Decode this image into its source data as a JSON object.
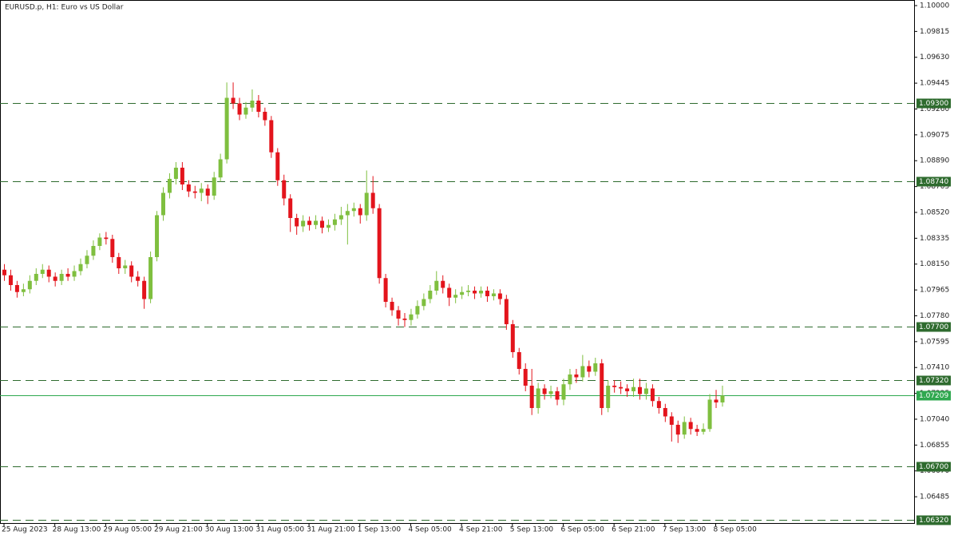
{
  "chart_data": {
    "type": "candlestick",
    "title": "EURUSD.p, H1:  Euro vs US Dollar",
    "categories": [
      "25 Aug 2023",
      null,
      null,
      null,
      null,
      null,
      null,
      null,
      "28 Aug 13:00",
      null,
      null,
      null,
      null,
      null,
      null,
      null,
      "29 Aug 05:00",
      null,
      null,
      null,
      null,
      null,
      null,
      null,
      "29 Aug 21:00",
      null,
      null,
      null,
      null,
      null,
      null,
      null,
      "30 Aug 13:00",
      null,
      null,
      null,
      null,
      null,
      null,
      null,
      "31 Aug 05:00",
      null,
      null,
      null,
      null,
      null,
      null,
      null,
      "31 Aug 21:00",
      null,
      null,
      null,
      null,
      null,
      null,
      null,
      "1 Sep 13:00",
      null,
      null,
      null,
      null,
      null,
      null,
      null,
      "4 Sep 05:00",
      null,
      null,
      null,
      null,
      null,
      null,
      null,
      "4 Sep 21:00",
      null,
      null,
      null,
      null,
      null,
      null,
      null,
      "5 Sep 13:00",
      null,
      null,
      null,
      null,
      null,
      null,
      null,
      "6 Sep 05:00",
      null,
      null,
      null,
      null,
      null,
      null,
      null,
      "6 Sep 21:00",
      null,
      null,
      null,
      null,
      null,
      null,
      null,
      "7 Sep 13:00",
      null,
      null,
      null,
      null,
      null,
      null,
      null,
      "8 Sep 05:00",
      null
    ],
    "open": [
      1.0811,
      1.0807,
      1.08,
      1.0795,
      1.0797,
      1.0803,
      1.0808,
      1.0811,
      1.0806,
      1.0803,
      1.0808,
      1.0806,
      1.081,
      1.0815,
      1.0821,
      1.0828,
      1.0834,
      1.0833,
      1.082,
      1.0812,
      1.0814,
      1.0806,
      1.0803,
      1.079,
      1.082,
      1.085,
      1.0866,
      1.0876,
      1.0884,
      1.0872,
      1.0867,
      1.0866,
      1.0869,
      1.0864,
      1.0877,
      1.089,
      1.0934,
      1.093,
      1.0922,
      1.0927,
      1.0932,
      1.0924,
      1.0918,
      1.0895,
      1.0875,
      1.0862,
      1.0848,
      1.0842,
      1.0846,
      1.0843,
      1.0846,
      1.0841,
      1.0843,
      1.0847,
      1.085,
      1.0853,
      1.0855,
      1.085,
      1.0866,
      1.0855,
      1.0805,
      1.0788,
      1.0782,
      1.0776,
      1.0775,
      1.0779,
      1.0785,
      1.079,
      1.0796,
      1.0803,
      1.0798,
      1.0791,
      1.0793,
      1.0795,
      1.0796,
      1.0794,
      1.0796,
      1.0792,
      1.0794,
      1.079,
      1.0772,
      1.0752,
      1.074,
      1.0728,
      1.0712,
      1.0726,
      1.0722,
      1.0724,
      1.0718,
      1.0729,
      1.0736,
      1.0734,
      1.0742,
      1.0738,
      1.0744,
      1.0712,
      1.0728,
      1.0727,
      1.0726,
      1.0724,
      1.0727,
      1.0722,
      1.0726,
      1.0717,
      1.0712,
      1.0706,
      1.07,
      1.0693,
      1.0702,
      1.0697,
      1.0695,
      1.0697,
      1.0718,
      1.0716
    ],
    "high": [
      1.0815,
      1.0811,
      1.0803,
      1.0801,
      1.0807,
      1.0812,
      1.0815,
      1.0814,
      1.0809,
      1.0811,
      1.0812,
      1.0814,
      1.0819,
      1.0825,
      1.0832,
      1.0837,
      1.0838,
      1.0836,
      1.0823,
      1.0818,
      1.0817,
      1.081,
      1.0806,
      1.0824,
      1.0853,
      1.087,
      1.088,
      1.0888,
      1.0888,
      1.0875,
      1.0871,
      1.0873,
      1.0872,
      1.0881,
      1.0894,
      1.0945,
      1.0945,
      1.0934,
      1.0931,
      1.094,
      1.0936,
      1.0927,
      1.0921,
      1.0898,
      1.0879,
      1.0865,
      1.0851,
      1.085,
      1.0849,
      1.085,
      1.0849,
      1.0847,
      1.0851,
      1.0856,
      1.0858,
      1.0859,
      1.0858,
      1.0882,
      1.0878,
      1.0858,
      1.0808,
      1.0791,
      1.0785,
      1.078,
      1.0783,
      1.0789,
      1.0794,
      1.08,
      1.081,
      1.0807,
      1.0801,
      1.0797,
      1.0799,
      1.08,
      1.0799,
      1.0799,
      1.0799,
      1.0797,
      1.0797,
      1.0793,
      1.0775,
      1.0755,
      1.0744,
      1.074,
      1.073,
      1.0729,
      1.0728,
      1.0727,
      1.0733,
      1.074,
      1.074,
      1.075,
      1.0746,
      1.0748,
      1.0747,
      1.0732,
      1.0732,
      1.0731,
      1.0729,
      1.0733,
      1.0733,
      1.073,
      1.0729,
      1.072,
      1.0715,
      1.0709,
      1.0703,
      1.0706,
      1.0705,
      1.07,
      1.0701,
      1.0722,
      1.0725,
      1.0728
    ],
    "low": [
      1.0803,
      1.0796,
      1.0791,
      1.0792,
      1.0794,
      1.08,
      1.0805,
      1.0802,
      1.0799,
      1.08,
      1.0803,
      1.0803,
      1.0807,
      1.0812,
      1.0818,
      1.0825,
      1.0829,
      1.0816,
      1.0808,
      1.0808,
      1.0802,
      1.0799,
      1.0783,
      1.0787,
      1.0817,
      1.0846,
      1.0862,
      1.0872,
      1.0868,
      1.0863,
      1.0862,
      1.086,
      1.0858,
      1.0861,
      1.0874,
      1.0887,
      1.0926,
      1.0918,
      1.0919,
      1.0924,
      1.092,
      1.0914,
      1.0891,
      1.0871,
      1.0857,
      1.0838,
      1.0836,
      1.0838,
      1.0839,
      1.084,
      1.0837,
      1.0838,
      1.0839,
      1.0843,
      1.0829,
      1.0849,
      1.0844,
      1.0846,
      1.0851,
      1.0801,
      1.0784,
      1.0778,
      1.0771,
      1.077,
      1.0771,
      1.0776,
      1.0782,
      1.0787,
      1.0793,
      1.0794,
      1.0785,
      1.0787,
      1.079,
      1.0792,
      1.079,
      1.0791,
      1.0788,
      1.0789,
      1.0786,
      1.0768,
      1.0748,
      1.0736,
      1.0724,
      1.0707,
      1.0708,
      1.0718,
      1.0719,
      1.0714,
      1.0714,
      1.0725,
      1.073,
      1.0731,
      1.0734,
      1.0735,
      1.0707,
      1.0709,
      1.0723,
      1.0722,
      1.072,
      1.072,
      1.0718,
      1.0718,
      1.0713,
      1.0708,
      1.0702,
      1.0688,
      1.0687,
      1.069,
      1.0693,
      1.0692,
      1.0693,
      1.0695,
      1.0712,
      1.0713
    ],
    "close": [
      1.0807,
      1.08,
      1.0795,
      1.0797,
      1.0803,
      1.0808,
      1.0811,
      1.0806,
      1.0803,
      1.0808,
      1.0806,
      1.081,
      1.0815,
      1.0821,
      1.0828,
      1.0834,
      1.0833,
      1.082,
      1.0812,
      1.0814,
      1.0806,
      1.0803,
      1.079,
      1.082,
      1.085,
      1.0866,
      1.0876,
      1.0884,
      1.0872,
      1.0867,
      1.0866,
      1.0869,
      1.0864,
      1.0877,
      1.089,
      1.0934,
      1.093,
      1.0922,
      1.0927,
      1.0932,
      1.0924,
      1.0918,
      1.0895,
      1.0875,
      1.0862,
      1.0848,
      1.0842,
      1.0846,
      1.0843,
      1.0846,
      1.0841,
      1.0843,
      1.0847,
      1.085,
      1.0853,
      1.0855,
      1.085,
      1.0866,
      1.0855,
      1.0805,
      1.0788,
      1.0782,
      1.0776,
      1.0775,
      1.0779,
      1.0785,
      1.079,
      1.0796,
      1.0803,
      1.0798,
      1.0791,
      1.0793,
      1.0795,
      1.0796,
      1.0794,
      1.0796,
      1.0792,
      1.0794,
      1.079,
      1.0772,
      1.0752,
      1.074,
      1.0728,
      1.0712,
      1.0726,
      1.0722,
      1.0724,
      1.0718,
      1.0729,
      1.0736,
      1.0734,
      1.0742,
      1.0738,
      1.0744,
      1.0712,
      1.0728,
      1.0727,
      1.0726,
      1.0724,
      1.0727,
      1.0722,
      1.0726,
      1.0717,
      1.0712,
      1.0706,
      1.07,
      1.0693,
      1.0702,
      1.0697,
      1.0695,
      1.0697,
      1.0718,
      1.0716,
      1.07209
    ],
    "up_color": "#7fbf3f",
    "down_color": "#e3141c",
    "ylim": [
      1.06297,
      1.1004
    ],
    "yticks": [
      {
        "value": 1.1,
        "label": "1.10000"
      },
      {
        "value": 1.09815,
        "label": "1.09815"
      },
      {
        "value": 1.0963,
        "label": "1.09630"
      },
      {
        "value": 1.09445,
        "label": "1.09445"
      },
      {
        "value": 1.0926,
        "label": "1.09260"
      },
      {
        "value": 1.09075,
        "label": "1.09075"
      },
      {
        "value": 1.0889,
        "label": "1.08890"
      },
      {
        "value": 1.08705,
        "label": "1.08705"
      },
      {
        "value": 1.0852,
        "label": "1.08520"
      },
      {
        "value": 1.08335,
        "label": "1.08335"
      },
      {
        "value": 1.0815,
        "label": "1.08150"
      },
      {
        "value": 1.07965,
        "label": "1.07965"
      },
      {
        "value": 1.0778,
        "label": "1.07780"
      },
      {
        "value": 1.07595,
        "label": "1.07595"
      },
      {
        "value": 1.0741,
        "label": "1.07410"
      },
      {
        "value": 1.07225,
        "label": "1.07225"
      },
      {
        "value": 1.0704,
        "label": "1.07040"
      },
      {
        "value": 1.06855,
        "label": "1.06855"
      },
      {
        "value": 1.0667,
        "label": "1.06670"
      },
      {
        "value": 1.06485,
        "label": "1.06485"
      }
    ],
    "levels": [
      {
        "value": 1.093,
        "label": "1.09300"
      },
      {
        "value": 1.0874,
        "label": "1.08740"
      },
      {
        "value": 1.077,
        "label": "1.07700"
      },
      {
        "value": 1.0732,
        "label": "1.07320"
      },
      {
        "value": 1.067,
        "label": "1.06700"
      },
      {
        "value": 1.0632,
        "label": "1.06320"
      }
    ],
    "level_color": "#2e6b2e",
    "price_line": {
      "value": 1.07209,
      "label": "1.07209"
    },
    "price_line_color": "#2fa84f"
  }
}
